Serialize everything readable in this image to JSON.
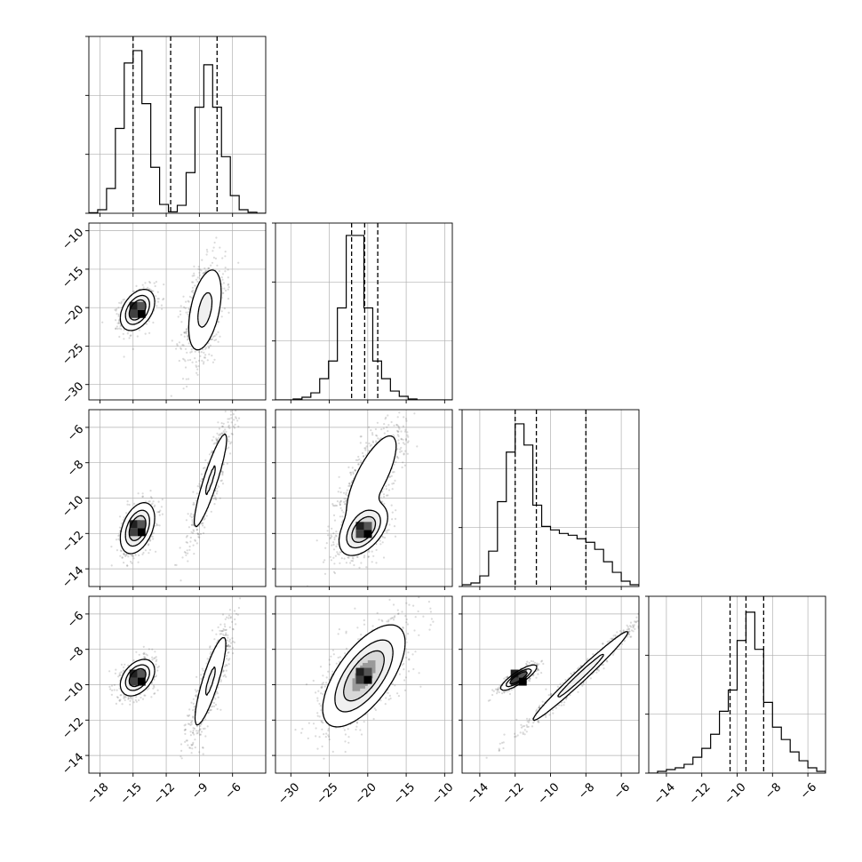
{
  "chart_data": {
    "type": "corner",
    "title": "",
    "grid": true,
    "colors": {
      "line": "#000000",
      "scatter": "#555555",
      "grid": "#b0b0b0",
      "contour_fill": "#b8b8b8"
    },
    "params": [
      {
        "range": [
          -19,
          -3
        ],
        "ticks": [
          -18,
          -15,
          -12,
          -9,
          -6
        ],
        "tick_labels": [
          "−18",
          "−15",
          "−12",
          "−9",
          "−6"
        ]
      },
      {
        "range": [
          -32,
          -9
        ],
        "ticks": [
          -30,
          -25,
          -20,
          -15,
          -10
        ],
        "tick_labels": [
          "−30",
          "−25",
          "−20",
          "−15",
          "−10"
        ]
      },
      {
        "range": [
          -15,
          -5
        ],
        "ticks": [
          -14,
          -12,
          -10,
          -8,
          -6
        ],
        "tick_labels": [
          "−14",
          "−12",
          "−10",
          "−8",
          "−6"
        ]
      },
      {
        "range": [
          -15,
          -5
        ],
        "ticks": [
          -14,
          -12,
          -10,
          -8,
          -6
        ],
        "tick_labels": [
          "−14",
          "−12",
          "−10",
          "−8",
          "−6"
        ]
      }
    ],
    "histograms": [
      {
        "param": 0,
        "bin_edges": [
          -19,
          -18.2,
          -17.4,
          -16.6,
          -15.8,
          -15,
          -14.2,
          -13.4,
          -12.6,
          -11.8,
          -11,
          -10.2,
          -9.4,
          -8.6,
          -7.8,
          -7,
          -6.2,
          -5.4,
          -4.6,
          -3.8,
          -3
        ],
        "counts": [
          0.3,
          2,
          14,
          48,
          85,
          92,
          62,
          26,
          5,
          0.8,
          4.5,
          23,
          60,
          84,
          60,
          32,
          10,
          2,
          0.6,
          0
        ],
        "ymax": 100,
        "quantiles": [
          -15,
          -11.6,
          -7.4
        ]
      },
      {
        "param": 1,
        "bin_edges": [
          -32,
          -30.85,
          -29.7,
          -28.55,
          -27.4,
          -26.25,
          -25.1,
          -23.95,
          -22.8,
          -21.65,
          -20.5,
          -19.35,
          -18.2,
          -17.05,
          -15.9,
          -14.75,
          -13.6,
          -12.45,
          -11.3,
          -10.15,
          -9
        ],
        "counts": [
          0,
          0,
          0.5,
          1.5,
          4,
          12,
          22,
          52,
          93,
          93,
          52,
          22,
          12,
          5,
          2,
          0.5,
          0,
          0,
          0,
          0
        ],
        "ymax": 100,
        "quantiles": [
          -22.1,
          -20.4,
          -18.7
        ]
      },
      {
        "param": 2,
        "bin_edges": [
          -15,
          -14.5,
          -14,
          -13.5,
          -13,
          -12.5,
          -12,
          -11.5,
          -11,
          -10.5,
          -10,
          -9.5,
          -9,
          -8.5,
          -8,
          -7.5,
          -7,
          -6.5,
          -6,
          -5.5,
          -5
        ],
        "counts": [
          1,
          2,
          6,
          20,
          48,
          76,
          92,
          80,
          46,
          34,
          32,
          30,
          29,
          27,
          25,
          21,
          14,
          8,
          3,
          1
        ],
        "ymax": 100,
        "quantiles": [
          -12,
          -10.8,
          -8
        ]
      },
      {
        "param": 3,
        "bin_edges": [
          -15,
          -14.5,
          -14,
          -13.5,
          -13,
          -12.5,
          -12,
          -11.5,
          -11,
          -10.5,
          -10,
          -9.5,
          -9,
          -8.5,
          -8,
          -7.5,
          -7,
          -6.5,
          -6,
          -5.5,
          -5
        ],
        "counts": [
          0,
          1,
          2,
          3,
          5,
          9,
          14,
          22,
          35,
          47,
          75,
          91,
          70,
          40,
          26,
          19,
          12,
          7,
          3,
          1
        ],
        "ymax": 100,
        "quantiles": [
          -10.4,
          -9.5,
          -8.5
        ]
      }
    ],
    "pair_panels": [
      {
        "x_param": 0,
        "y_param": 1,
        "modes": [
          {
            "center": [
              -14.6,
              -20.3
            ],
            "sigma": [
              0.75,
              1.3
            ],
            "rho": 0.4,
            "weight": 0.5,
            "peak": 1.0
          },
          {
            "center": [
              -8.5,
              -20.3
            ],
            "sigma": [
              0.9,
              3.2
            ],
            "rho": 0.45,
            "weight": 0.5,
            "peak": 0.45
          }
        ]
      },
      {
        "x_param": 0,
        "y_param": 2,
        "modes": [
          {
            "center": [
              -14.6,
              -11.7
            ],
            "sigma": [
              0.75,
              0.7
            ],
            "rho": 0.4,
            "weight": 0.5,
            "peak": 1.0
          },
          {
            "center": [
              -8,
              -9
            ],
            "sigma": [
              0.95,
              1.7
            ],
            "rho": 0.9,
            "weight": 0.5,
            "peak": 0.4
          }
        ]
      },
      {
        "x_param": 1,
        "y_param": 2,
        "modes": [
          {
            "center": [
              -20.5,
              -11.8
            ],
            "sigma": [
              1.5,
              0.7
            ],
            "rho": 0.5,
            "weight": 0.5,
            "peak": 1.0
          },
          {
            "center": [
              -19.5,
              -8.8
            ],
            "sigma": [
              2.2,
              1.6
            ],
            "rho": 0.75,
            "weight": 0.5,
            "peak": 0.35
          }
        ]
      },
      {
        "x_param": 0,
        "y_param": 3,
        "modes": [
          {
            "center": [
              -14.6,
              -9.6
            ],
            "sigma": [
              0.75,
              0.5
            ],
            "rho": 0.4,
            "weight": 0.5,
            "peak": 1.0
          },
          {
            "center": [
              -8,
              -9.8
            ],
            "sigma": [
              0.9,
              1.6
            ],
            "rho": 0.85,
            "weight": 0.5,
            "peak": 0.4
          }
        ]
      },
      {
        "x_param": 1,
        "y_param": 3,
        "modes": [
          {
            "center": [
              -20.5,
              -9.5
            ],
            "sigma": [
              2.6,
              1.4
            ],
            "rho": 0.65,
            "weight": 1.0,
            "peak": 1.0
          }
        ]
      },
      {
        "x_param": 2,
        "y_param": 3,
        "modes": [
          {
            "center": [
              -11.8,
              -9.6
            ],
            "sigma": [
              0.5,
              0.35
            ],
            "rho": 0.85,
            "weight": 0.45,
            "peak": 1.0
          },
          {
            "center": [
              -8.3,
              -9.5
            ],
            "sigma": [
              1.6,
              1.5
            ],
            "rho": 0.985,
            "weight": 0.55,
            "peak": 0.5
          }
        ]
      }
    ]
  }
}
